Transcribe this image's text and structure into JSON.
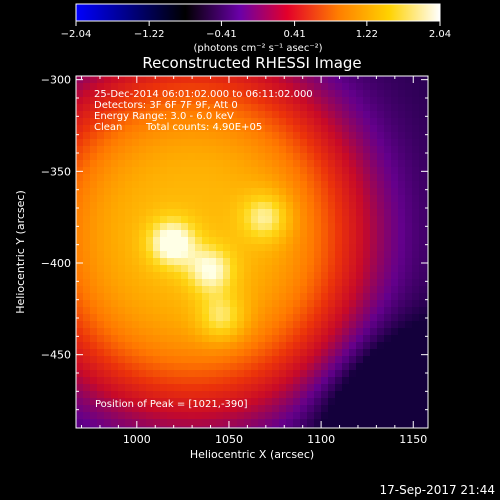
{
  "chart_data": {
    "type": "heatmap",
    "title": "Reconstructed RHESSI Image",
    "xlabel": "Heliocentric X (arcsec)",
    "ylabel": "Heliocentric Y (arcsec)",
    "xlim": [
      967,
      1158
    ],
    "ylim": [
      -490,
      -298
    ],
    "x_ticks": [
      1000,
      1050,
      1100,
      1150
    ],
    "y_ticks": [
      -300,
      -350,
      -400,
      -450
    ],
    "x_tick_labels": [
      "1000",
      "1050",
      "1100",
      "1150"
    ],
    "y_tick_labels": [
      "−300",
      "−350",
      "−400",
      "−450"
    ],
    "colorbar": {
      "range": [
        -2.04,
        2.04
      ],
      "tick_values": [
        -2.04,
        -1.22,
        -0.41,
        0.41,
        1.22,
        2.04
      ],
      "tick_labels": [
        "−2.04",
        "−1.22",
        "−0.41",
        "0.41",
        "1.22",
        "2.04"
      ],
      "units_label": "(photons cm⁻² s⁻¹ asec⁻²)",
      "colormap": [
        "#0000ff",
        "#000000",
        "#6a00a8",
        "#e3002a",
        "#ff7d00",
        "#ffd200",
        "#ffffff"
      ]
    },
    "annotations": {
      "time_range": "25-Dec-2014 06:01:02.000 to 06:11:02.000",
      "detectors": "Detectors: 3F 6F 7F 9F, Att 0",
      "energy_range": "Energy Range: 3.0 - 6.0 keV",
      "clean_label": "Clean",
      "total_counts": "Total counts: 4.90E+05",
      "peak_position": "Position of Peak = [1021,-390]"
    },
    "source_peaks": [
      {
        "x": 1019,
        "y": -389,
        "level": 1.0
      },
      {
        "x": 1040,
        "y": -404,
        "level": 0.82
      },
      {
        "x": 1070,
        "y": -375,
        "level": 0.75
      },
      {
        "x": 1046,
        "y": -430,
        "level": 0.68
      }
    ]
  },
  "footer": {
    "timestamp": "17-Sep-2017 21:44"
  }
}
